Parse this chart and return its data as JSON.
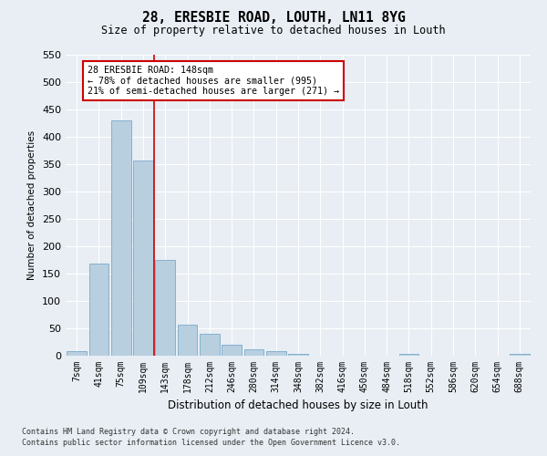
{
  "title": "28, ERESBIE ROAD, LOUTH, LN11 8YG",
  "subtitle": "Size of property relative to detached houses in Louth",
  "xlabel": "Distribution of detached houses by size in Louth",
  "ylabel": "Number of detached properties",
  "footnote1": "Contains HM Land Registry data © Crown copyright and database right 2024.",
  "footnote2": "Contains public sector information licensed under the Open Government Licence v3.0.",
  "bar_color": "#b8cfe0",
  "bar_edge_color": "#7aaacb",
  "background_color": "#e8eef4",
  "grid_color": "#ffffff",
  "annotation_box_color": "#cc0000",
  "vline_color": "#cc0000",
  "categories": [
    "7sqm",
    "41sqm",
    "75sqm",
    "109sqm",
    "143sqm",
    "178sqm",
    "212sqm",
    "246sqm",
    "280sqm",
    "314sqm",
    "348sqm",
    "382sqm",
    "416sqm",
    "450sqm",
    "484sqm",
    "518sqm",
    "552sqm",
    "586sqm",
    "620sqm",
    "654sqm",
    "688sqm"
  ],
  "values": [
    8,
    168,
    430,
    357,
    175,
    57,
    40,
    20,
    11,
    8,
    4,
    0,
    0,
    0,
    0,
    3,
    0,
    0,
    0,
    0,
    4
  ],
  "vline_pos": 3.5,
  "annotation_line1": "28 ERESBIE ROAD: 148sqm",
  "annotation_line2": "← 78% of detached houses are smaller (995)",
  "annotation_line3": "21% of semi-detached houses are larger (271) →",
  "ylim": [
    0,
    550
  ],
  "yticks": [
    0,
    50,
    100,
    150,
    200,
    250,
    300,
    350,
    400,
    450,
    500,
    550
  ]
}
